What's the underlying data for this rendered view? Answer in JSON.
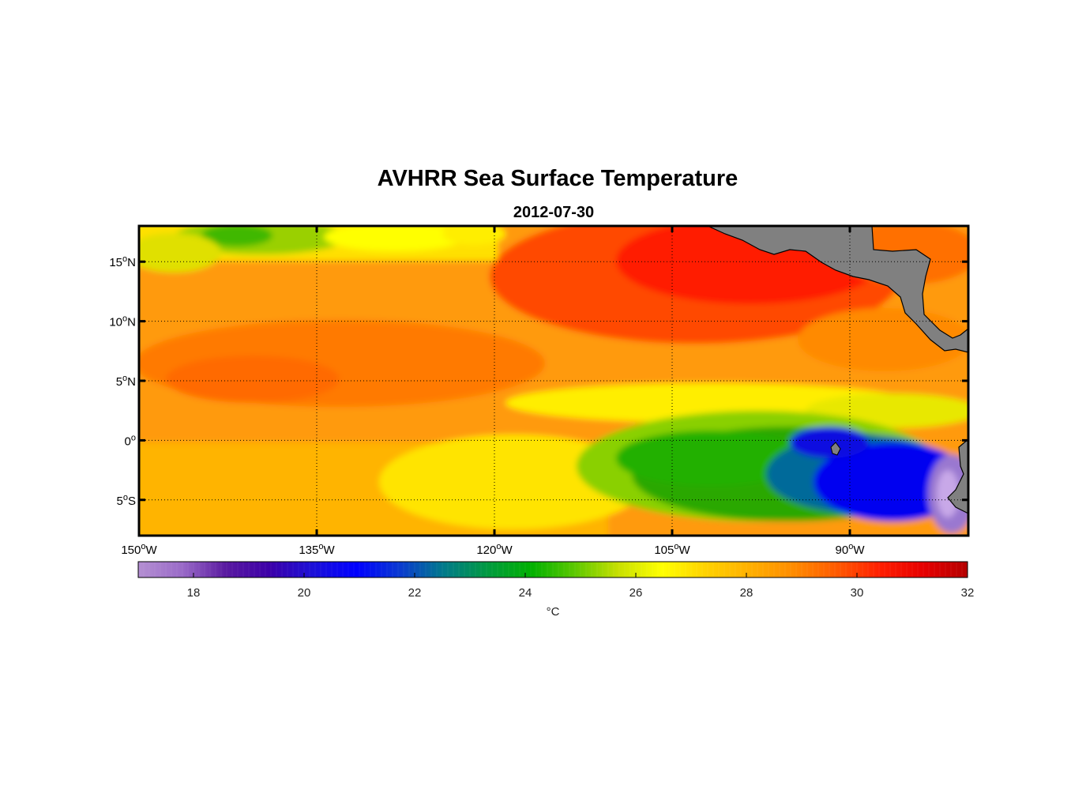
{
  "title": "AVHRR Sea Surface Temperature",
  "subtitle": "2012-07-30",
  "chart_data": {
    "type": "heatmap",
    "variable": "sea surface temperature",
    "lon_range": [
      -150,
      -80
    ],
    "lat_range": [
      -8,
      18
    ],
    "lon_ticks": [
      {
        "value": -150,
        "label": "150",
        "suffix": "W"
      },
      {
        "value": -135,
        "label": "135",
        "suffix": "W"
      },
      {
        "value": -120,
        "label": "120",
        "suffix": "W"
      },
      {
        "value": -105,
        "label": "105",
        "suffix": "W"
      },
      {
        "value": -90,
        "label": "90",
        "suffix": "W"
      }
    ],
    "lat_ticks": [
      {
        "value": 15,
        "label": "15",
        "suffix": "N"
      },
      {
        "value": 10,
        "label": "10",
        "suffix": "N"
      },
      {
        "value": 5,
        "label": "5",
        "suffix": "N"
      },
      {
        "value": 0,
        "label": "0",
        "suffix": ""
      },
      {
        "value": -5,
        "label": "5",
        "suffix": "S"
      }
    ],
    "grid": true,
    "colorbar": {
      "range": [
        17,
        32
      ],
      "ticks": [
        18,
        20,
        22,
        24,
        26,
        28,
        30,
        32
      ],
      "units": "°C",
      "placement": "bottom",
      "colors": [
        "#b48fd2",
        "#9a6bc8",
        "#5a1aa0",
        "#3c00a8",
        "#1c10d8",
        "#0000ff",
        "#0a3ad0",
        "#007a8a",
        "#009a40",
        "#00b000",
        "#5cc800",
        "#c8e000",
        "#ffff00",
        "#ffd200",
        "#ffb000",
        "#ff8c00",
        "#ff5a00",
        "#ff1e00",
        "#e60000",
        "#b40000"
      ]
    },
    "land_color": "#808080"
  }
}
